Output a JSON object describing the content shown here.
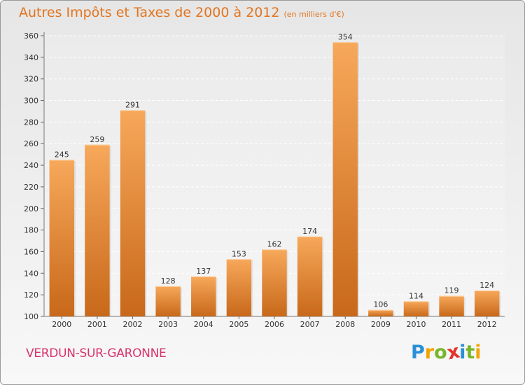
{
  "title": "Autres Impôts et Taxes de 2000 à 2012",
  "subtitle": "(en milliers d'€)",
  "town": "VERDUN-SUR-GARONNE",
  "logo": {
    "letters": [
      "P",
      "r",
      "o",
      "x",
      "i",
      "t",
      "i"
    ],
    "colors": [
      "#2a8fd6",
      "#f2a300",
      "#79b52a",
      "#e2342e",
      "#2a8fd6",
      "#79b52a",
      "#f2a300"
    ]
  },
  "colors": {
    "bar_top": "#f7a85a",
    "bar_bottom": "#c8681a",
    "title": "#e2741e",
    "town": "#d8336e"
  },
  "chart_data": {
    "type": "bar",
    "categories": [
      "2000",
      "2001",
      "2002",
      "2003",
      "2004",
      "2005",
      "2006",
      "2007",
      "2008",
      "2009",
      "2010",
      "2011",
      "2012"
    ],
    "values": [
      245,
      259,
      291,
      128,
      137,
      153,
      162,
      174,
      354,
      106,
      114,
      119,
      124
    ],
    "data_labels": [
      "245",
      "259",
      "291",
      "128",
      "137",
      "153",
      "162",
      "174",
      "354",
      "106",
      "114",
      "119",
      "124"
    ],
    "yticks": [
      "100",
      "120",
      "140",
      "160",
      "180",
      "200",
      "220",
      "240",
      "260",
      "280",
      "300",
      "320",
      "340",
      "360"
    ],
    "ylim": [
      100,
      360
    ],
    "grid": true,
    "title": "Autres Impôts et Taxes de 2000 à 2012",
    "subtitle": "(en milliers d'€)",
    "xlabel": "",
    "ylabel": ""
  }
}
